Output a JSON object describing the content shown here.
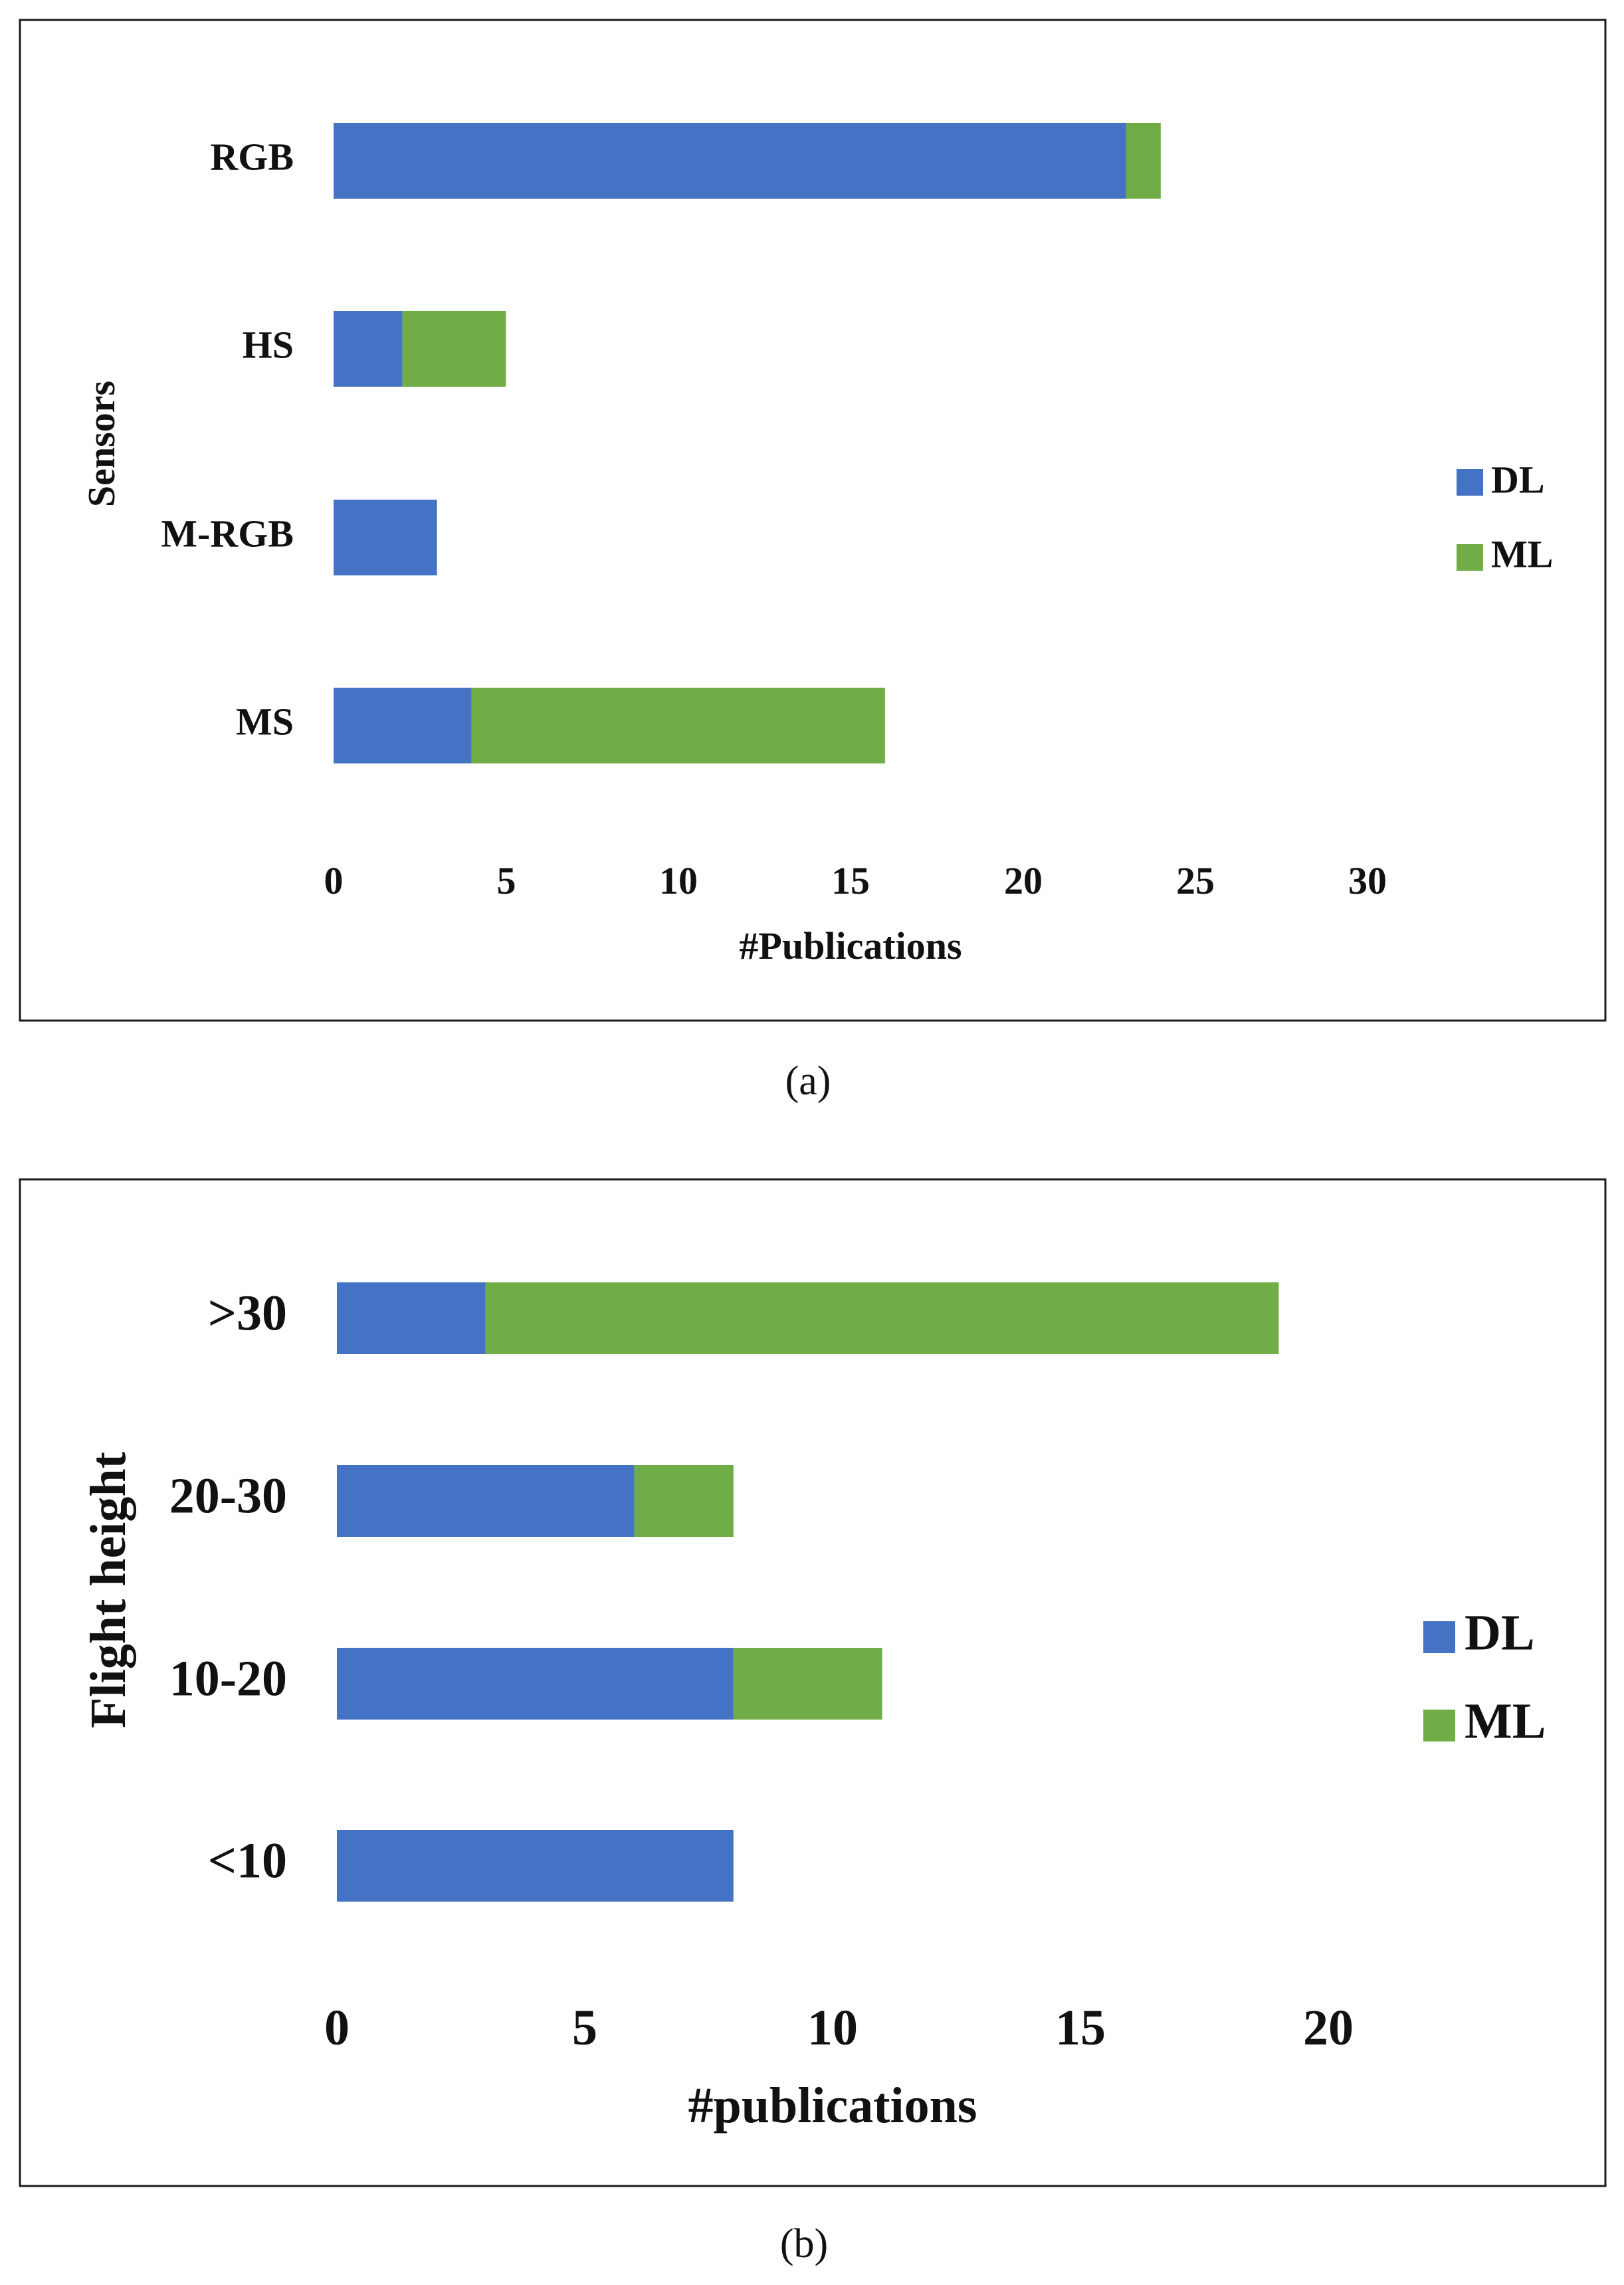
{
  "chart_data": [
    {
      "id": "a",
      "type": "bar",
      "orientation": "horizontal",
      "stacked": true,
      "caption": "(a)",
      "categories": [
        "RGB",
        "HS",
        "M-RGB",
        "MS"
      ],
      "series": [
        {
          "name": "DL",
          "color": "#4472C4",
          "values": [
            23,
            2,
            3,
            4
          ]
        },
        {
          "name": "ML",
          "color": "#70AD47",
          "values": [
            1,
            3,
            0,
            12
          ]
        }
      ],
      "xlabel": "#Publications",
      "ylabel": "Sensors",
      "xlim": [
        0,
        30
      ],
      "xticks": [
        "0",
        "5",
        "10",
        "15",
        "20",
        "25",
        "30"
      ],
      "grid": false,
      "legend_position": "right"
    },
    {
      "id": "b",
      "type": "bar",
      "orientation": "horizontal",
      "stacked": true,
      "caption": "(b)",
      "categories": [
        ">30",
        "20-30",
        "10-20",
        "<10"
      ],
      "series": [
        {
          "name": "DL",
          "color": "#4472C4",
          "values": [
            3,
            6,
            8,
            8
          ]
        },
        {
          "name": "ML",
          "color": "#70AD47",
          "values": [
            16,
            2,
            3,
            0
          ]
        }
      ],
      "xlabel": "#publications",
      "ylabel": "Flight height",
      "xlim": [
        0,
        20
      ],
      "xticks": [
        "0",
        "5",
        "10",
        "15",
        "20"
      ],
      "grid": false,
      "legend_position": "right"
    }
  ]
}
